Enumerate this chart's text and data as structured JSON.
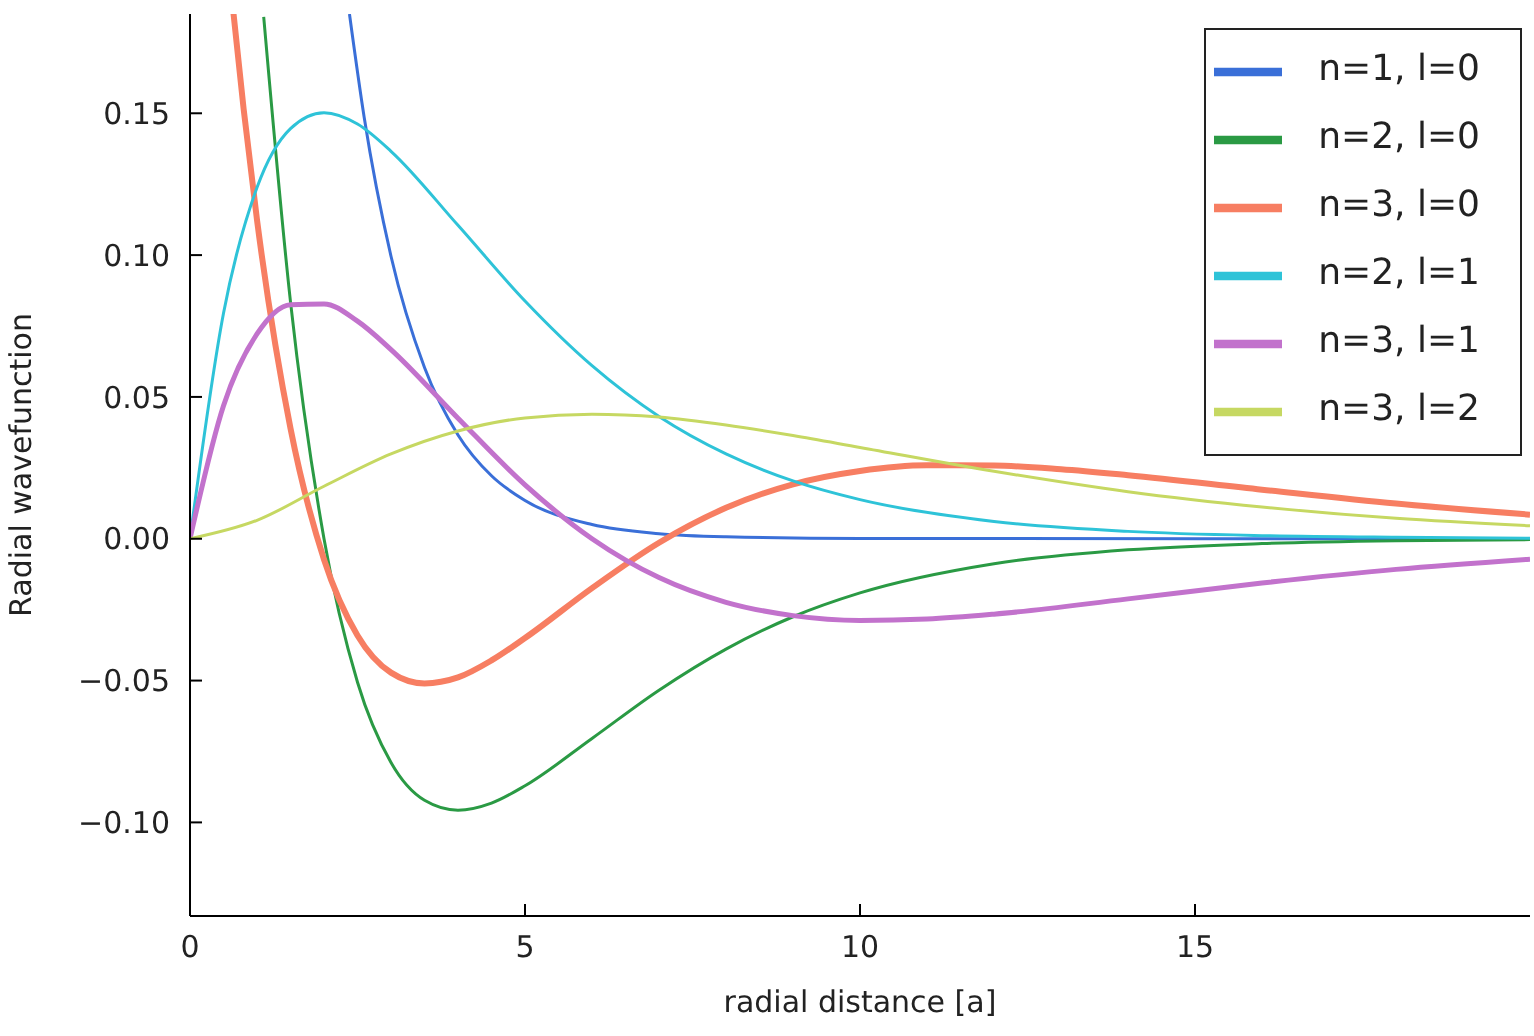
{
  "chart_data": {
    "type": "line",
    "xlabel": "radial distance [a]",
    "ylabel": "Radial wavefunction",
    "xlim": [
      0,
      20
    ],
    "xticks": [
      0,
      5,
      10,
      15
    ],
    "ylim": [
      -0.133,
      0.185
    ],
    "yticks": [
      {
        "value": -0.1,
        "label": "−0.10"
      },
      {
        "value": -0.05,
        "label": "−0.05"
      },
      {
        "value": 0,
        "label": "0.00"
      },
      {
        "value": 0.05,
        "label": "0.05"
      },
      {
        "value": 0.1,
        "label": "0.10"
      },
      {
        "value": 0.15,
        "label": "0.15"
      }
    ],
    "grid": false,
    "legend": "top right",
    "marker": "none",
    "line_style": "solid",
    "series": [
      {
        "name": "n=1, l=0",
        "color": "#3a6fd8",
        "x": [
          2.38,
          2.6,
          3,
          3.5,
          4,
          4.5,
          5,
          6,
          7,
          8,
          10,
          20
        ],
        "values": [
          0.185,
          0.1485,
          0.0996,
          0.0604,
          0.0366,
          0.0222,
          0.0135,
          0.005,
          0.0018,
          0.0007,
          0.0001,
          0
        ]
      },
      {
        "name": "n=2, l=0",
        "color": "#2a9a44",
        "x": [
          1.1,
          1.5,
          2,
          2.5,
          3,
          3.5,
          4,
          4.5,
          5,
          6,
          7,
          8,
          9,
          10,
          12,
          14,
          16,
          18,
          20
        ],
        "values": [
          0.184,
          0.0835,
          0,
          -0.0506,
          -0.0789,
          -0.0922,
          -0.0957,
          -0.0932,
          -0.0871,
          -0.0704,
          -0.0534,
          -0.0389,
          -0.0275,
          -0.0191,
          -0.0088,
          -0.0039,
          -0.0017,
          -0.0007,
          -0.0003
        ]
      },
      {
        "name": "n=3, l=0",
        "color": "#f77e62",
        "x": [
          0.65,
          0.8,
          1,
          1.5,
          2,
          2.5,
          3,
          3.5,
          4,
          4.5,
          5,
          6,
          7,
          8,
          9,
          10,
          11,
          12,
          13,
          14,
          16,
          18,
          20
        ],
        "values": [
          0.185,
          0.1516,
          0.1124,
          0.0389,
          -0.0073,
          -0.0341,
          -0.0472,
          -0.051,
          -0.0489,
          -0.0429,
          -0.035,
          -0.0174,
          -0.0014,
          0.0109,
          0.0192,
          0.0239,
          0.0259,
          0.0258,
          0.0245,
          0.0224,
          0.0173,
          0.0124,
          0.0085
        ]
      },
      {
        "name": "n=2, l=1",
        "color": "#2ec3d8",
        "x": [
          0,
          0.5,
          1,
          1.5,
          2,
          2.5,
          3,
          4,
          5,
          6,
          7,
          8,
          9,
          10,
          12,
          14,
          16,
          18,
          20
        ],
        "values": [
          0,
          0.0795,
          0.1238,
          0.1446,
          0.1502,
          0.1462,
          0.1366,
          0.1105,
          0.0838,
          0.061,
          0.0431,
          0.0299,
          0.0204,
          0.0138,
          0.0061,
          0.0026,
          0.0011,
          0.0005,
          0.0002
        ]
      },
      {
        "name": "n=3, l=1",
        "color": "#c272cc",
        "x": [
          0,
          0.5,
          1,
          1.5,
          2,
          2.5,
          3,
          4,
          5,
          6,
          7,
          8,
          9,
          10,
          11,
          12,
          14,
          16,
          18,
          20
        ],
        "values": [
          0,
          0.0469,
          0.0722,
          0.0825,
          0.0828,
          0.0767,
          0.0667,
          0.0425,
          0.019,
          0,
          -0.0137,
          -0.0224,
          -0.0271,
          -0.0288,
          -0.0283,
          -0.0266,
          -0.0212,
          -0.0156,
          -0.0108,
          -0.0072
        ]
      },
      {
        "name": "n=3, l=2",
        "color": "#c6d862",
        "x": [
          0,
          1,
          2,
          3,
          4,
          5,
          6,
          7,
          8,
          9,
          10,
          12,
          14,
          16,
          18,
          20
        ],
        "values": [
          0,
          0.0065,
          0.0185,
          0.0299,
          0.038,
          0.0426,
          0.0439,
          0.0429,
          0.0401,
          0.0364,
          0.0322,
          0.0238,
          0.0166,
          0.0112,
          0.0072,
          0.0046
        ]
      }
    ]
  }
}
